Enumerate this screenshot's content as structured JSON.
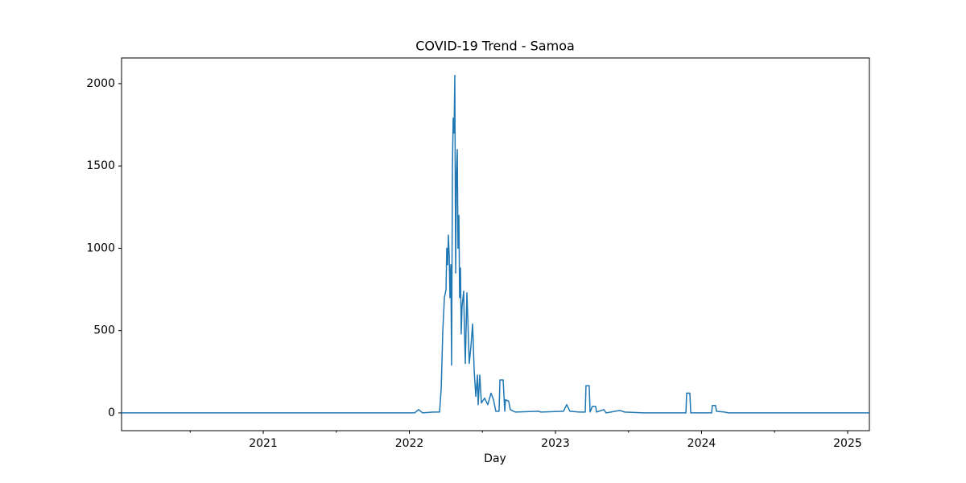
{
  "chart_data": {
    "type": "line",
    "title": "COVID-19 Trend - Samoa",
    "x_label": "Day",
    "x": [
      2020.03,
      2021.953,
      2022.036,
      2022.063,
      2022.091,
      2022.163,
      2022.207,
      2022.218,
      2022.229,
      2022.24,
      2022.251,
      2022.256,
      2022.262,
      2022.267,
      2022.273,
      2022.278,
      2022.284,
      2022.289,
      2022.295,
      2022.3,
      2022.306,
      2022.311,
      2022.317,
      2022.322,
      2022.328,
      2022.333,
      2022.339,
      2022.344,
      2022.35,
      2022.355,
      2022.361,
      2022.372,
      2022.377,
      2022.383,
      2022.394,
      2022.399,
      2022.41,
      2022.421,
      2022.433,
      2022.444,
      2022.455,
      2022.466,
      2022.471,
      2022.482,
      2022.493,
      2022.515,
      2022.537,
      2022.559,
      2022.576,
      2022.592,
      2022.614,
      2022.62,
      2022.642,
      2022.653,
      2022.658,
      2022.68,
      2022.691,
      2022.725,
      2022.884,
      2022.901,
      2023.055,
      2023.077,
      2023.099,
      2023.165,
      2023.204,
      2023.209,
      2023.231,
      2023.237,
      2023.253,
      2023.275,
      2023.281,
      2023.331,
      2023.347,
      2023.441,
      2023.474,
      2023.606,
      2023.893,
      2023.898,
      2023.92,
      2023.926,
      2024.069,
      2024.074,
      2024.096,
      2024.102,
      2024.157,
      2024.185,
      2025.149
    ],
    "series": [
      {
        "color": "#1f77b4",
        "values": [
          0,
          0,
          0,
          20,
          0,
          5,
          5,
          150,
          500,
          700,
          750,
          1000,
          900,
          1080,
          950,
          700,
          900,
          290,
          1500,
          1790,
          1700,
          2050,
          850,
          1450,
          1600,
          1000,
          1200,
          700,
          880,
          480,
          650,
          740,
          500,
          300,
          730,
          600,
          300,
          400,
          540,
          250,
          100,
          230,
          50,
          230,
          60,
          90,
          50,
          120,
          80,
          10,
          10,
          200,
          200,
          10,
          80,
          70,
          20,
          5,
          10,
          5,
          10,
          50,
          10,
          5,
          5,
          165,
          165,
          5,
          40,
          40,
          5,
          20,
          0,
          15,
          5,
          0,
          0,
          120,
          120,
          0,
          0,
          45,
          45,
          10,
          5,
          0,
          0
        ]
      }
    ],
    "xlim": [
      2020.03,
      2025.149
    ],
    "xticks": [
      2021,
      2022,
      2023,
      2024,
      2025
    ],
    "xminorticks": [
      2020.5,
      2021.5,
      2022.5,
      2023.5,
      2024.5
    ],
    "ylim": [
      -108,
      2156
    ],
    "yticks": [
      0,
      500,
      1000,
      1500,
      2000
    ]
  }
}
